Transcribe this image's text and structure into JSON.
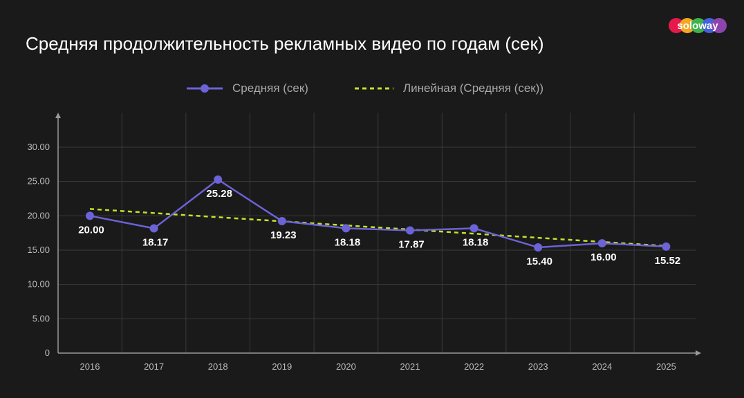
{
  "title": "Средняя продолжительность рекламных видео по годам (сек)",
  "logo": {
    "text": "soloway",
    "colors": [
      "#e6194b",
      "#f5a623",
      "#3cb44b",
      "#4363d8",
      "#8e44ad"
    ]
  },
  "legend": {
    "avg_label": "Средняя (сек)",
    "linear_label": "Линейная (Средняя (сек))"
  },
  "colors": {
    "background": "#1a1a1a",
    "series_line": "#6b63d6",
    "trend_line": "#c6e12a",
    "grid": "#3a3a3a",
    "axis": "#9a9a9a",
    "tick_text": "#bdbdbd",
    "label_text": "#ffffff"
  },
  "chart_data": {
    "type": "line",
    "categories": [
      "2016",
      "2017",
      "2018",
      "2019",
      "2020",
      "2021",
      "2022",
      "2023",
      "2024",
      "2025"
    ],
    "series": [
      {
        "name": "Средняя (сек)",
        "values": [
          20.0,
          18.17,
          25.28,
          19.23,
          18.18,
          17.87,
          18.18,
          15.4,
          16.0,
          15.52
        ],
        "labels": [
          "20.00",
          "18.17",
          "25.28",
          "19.23",
          "18.18",
          "17.87",
          "18.18",
          "15.40",
          "16.00",
          "15.52"
        ]
      }
    ],
    "trendline": {
      "name": "Линейная (Средняя (сек))",
      "type": "linear",
      "start": 21.0,
      "end": 15.6
    },
    "y_ticks": [
      "0",
      "5.00",
      "10.00",
      "15.00",
      "20.00",
      "25.00",
      "30.00"
    ],
    "ylim": [
      0,
      30
    ],
    "grid": true,
    "legend_position": "top-center"
  }
}
